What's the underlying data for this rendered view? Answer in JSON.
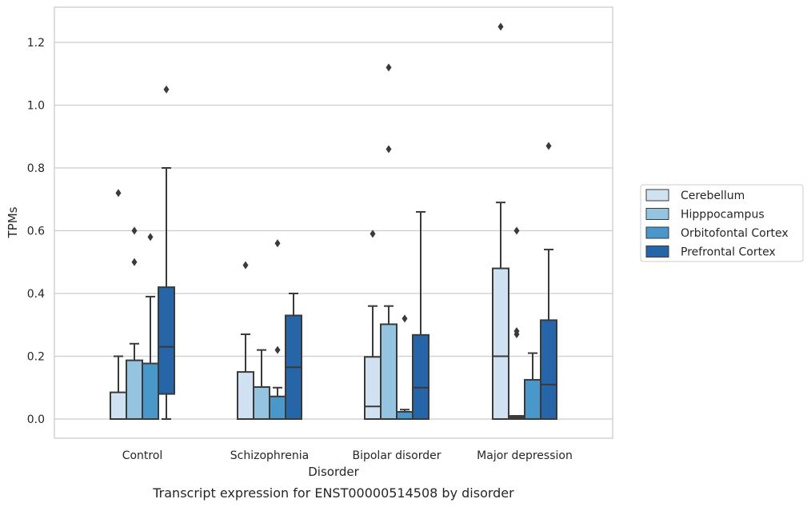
{
  "caption": "Transcript expression for ENST00000514508 by disorder",
  "chart_data": {
    "type": "box",
    "xlabel": "Disorder",
    "ylabel": "TPMs",
    "ylim": [
      -0.06,
      1.32
    ],
    "yticks": [
      0.0,
      0.2,
      0.4,
      0.6,
      0.8,
      1.0,
      1.2
    ],
    "ytick_labels": [
      "0.0",
      "0.2",
      "0.4",
      "0.6",
      "0.8",
      "1.0",
      "1.2"
    ],
    "grid": "horizontal",
    "legend_position": "right",
    "categories": [
      "Control",
      "Schizophrenia",
      "Bipolar disorder",
      "Major depression"
    ],
    "series": [
      {
        "name": "Cerebellum",
        "color": "#d0e1f2",
        "boxes": [
          {
            "whislo": 0.0,
            "q1": 0.0,
            "med": 0.0,
            "q3": 0.085,
            "whishi": 0.2,
            "fliers": [
              0.72
            ]
          },
          {
            "whislo": 0.0,
            "q1": 0.0,
            "med": 0.0,
            "q3": 0.15,
            "whishi": 0.27,
            "fliers": [
              0.49
            ]
          },
          {
            "whislo": 0.0,
            "q1": 0.0,
            "med": 0.04,
            "q3": 0.198,
            "whishi": 0.36,
            "fliers": [
              0.59
            ]
          },
          {
            "whislo": 0.0,
            "q1": 0.0,
            "med": 0.2,
            "q3": 0.48,
            "whishi": 0.69,
            "fliers": [
              1.25
            ]
          }
        ]
      },
      {
        "name": "Hipppocampus",
        "color": "#94c4df",
        "boxes": [
          {
            "whislo": 0.0,
            "q1": 0.0,
            "med": 0.0,
            "q3": 0.187,
            "whishi": 0.24,
            "fliers": [
              0.5,
              0.6
            ]
          },
          {
            "whislo": 0.0,
            "q1": 0.0,
            "med": 0.0,
            "q3": 0.102,
            "whishi": 0.22,
            "fliers": []
          },
          {
            "whislo": 0.0,
            "q1": 0.0,
            "med": 0.0,
            "q3": 0.302,
            "whishi": 0.36,
            "fliers": [
              0.86,
              1.12
            ]
          },
          {
            "whislo": 0.0,
            "q1": 0.0,
            "med": 0.005,
            "q3": 0.01,
            "whishi": 0.01,
            "fliers": [
              0.27,
              0.28,
              0.6
            ]
          }
        ]
      },
      {
        "name": "Orbitofontal Cortex",
        "color": "#4a98c9",
        "boxes": [
          {
            "whislo": 0.0,
            "q1": 0.0,
            "med": 0.0,
            "q3": 0.177,
            "whishi": 0.39,
            "fliers": [
              0.58
            ]
          },
          {
            "whislo": 0.0,
            "q1": 0.0,
            "med": 0.0,
            "q3": 0.072,
            "whishi": 0.1,
            "fliers": [
              0.22,
              0.56
            ]
          },
          {
            "whislo": 0.0,
            "q1": 0.0,
            "med": 0.0,
            "q3": 0.023,
            "whishi": 0.03,
            "fliers": [
              0.32
            ]
          },
          {
            "whislo": 0.0,
            "q1": 0.0,
            "med": 0.0,
            "q3": 0.125,
            "whishi": 0.21,
            "fliers": []
          }
        ]
      },
      {
        "name": "Prefrontal Cortex",
        "color": "#2565a8",
        "boxes": [
          {
            "whislo": 0.0,
            "q1": 0.08,
            "med": 0.23,
            "q3": 0.42,
            "whishi": 0.8,
            "fliers": [
              1.05
            ]
          },
          {
            "whislo": 0.0,
            "q1": 0.0,
            "med": 0.165,
            "q3": 0.33,
            "whishi": 0.4,
            "fliers": []
          },
          {
            "whislo": 0.0,
            "q1": 0.0,
            "med": 0.1,
            "q3": 0.268,
            "whishi": 0.66,
            "fliers": []
          },
          {
            "whislo": 0.0,
            "q1": 0.0,
            "med": 0.11,
            "q3": 0.315,
            "whishi": 0.54,
            "fliers": [
              0.87
            ]
          }
        ]
      }
    ]
  }
}
